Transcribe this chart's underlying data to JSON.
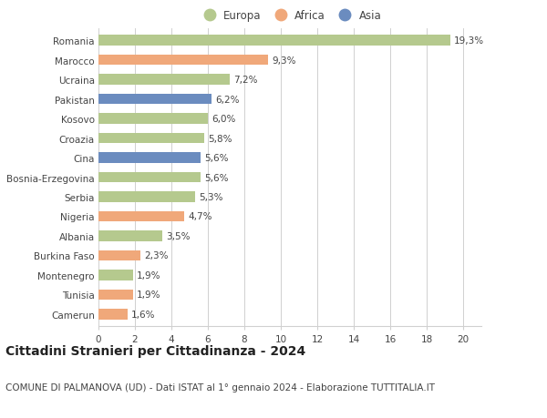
{
  "countries": [
    "Romania",
    "Marocco",
    "Ucraina",
    "Pakistan",
    "Kosovo",
    "Croazia",
    "Cina",
    "Bosnia-Erzegovina",
    "Serbia",
    "Nigeria",
    "Albania",
    "Burkina Faso",
    "Montenegro",
    "Tunisia",
    "Camerun"
  ],
  "values": [
    19.3,
    9.3,
    7.2,
    6.2,
    6.0,
    5.8,
    5.6,
    5.6,
    5.3,
    4.7,
    3.5,
    2.3,
    1.9,
    1.9,
    1.6
  ],
  "labels": [
    "19,3%",
    "9,3%",
    "7,2%",
    "6,2%",
    "6,0%",
    "5,8%",
    "5,6%",
    "5,6%",
    "5,3%",
    "4,7%",
    "3,5%",
    "2,3%",
    "1,9%",
    "1,9%",
    "1,6%"
  ],
  "continents": [
    "Europa",
    "Africa",
    "Europa",
    "Asia",
    "Europa",
    "Europa",
    "Asia",
    "Europa",
    "Europa",
    "Africa",
    "Europa",
    "Africa",
    "Europa",
    "Africa",
    "Africa"
  ],
  "colors": {
    "Europa": "#b5c98e",
    "Africa": "#f0a87a",
    "Asia": "#6b8cbf"
  },
  "legend_order": [
    "Europa",
    "Africa",
    "Asia"
  ],
  "legend_colors": [
    "#b5c98e",
    "#f0a87a",
    "#6b8cbf"
  ],
  "xlim": [
    0,
    21
  ],
  "xticks": [
    0,
    2,
    4,
    6,
    8,
    10,
    12,
    14,
    16,
    18,
    20
  ],
  "title": "Cittadini Stranieri per Cittadinanza - 2024",
  "subtitle": "COMUNE DI PALMANOVA (UD) - Dati ISTAT al 1° gennaio 2024 - Elaborazione TUTTITALIA.IT",
  "title_fontsize": 10,
  "subtitle_fontsize": 7.5,
  "label_fontsize": 7.5,
  "tick_fontsize": 7.5,
  "legend_fontsize": 8.5,
  "bar_height": 0.55,
  "background_color": "#ffffff",
  "grid_color": "#d0d0d0",
  "text_color": "#444444"
}
